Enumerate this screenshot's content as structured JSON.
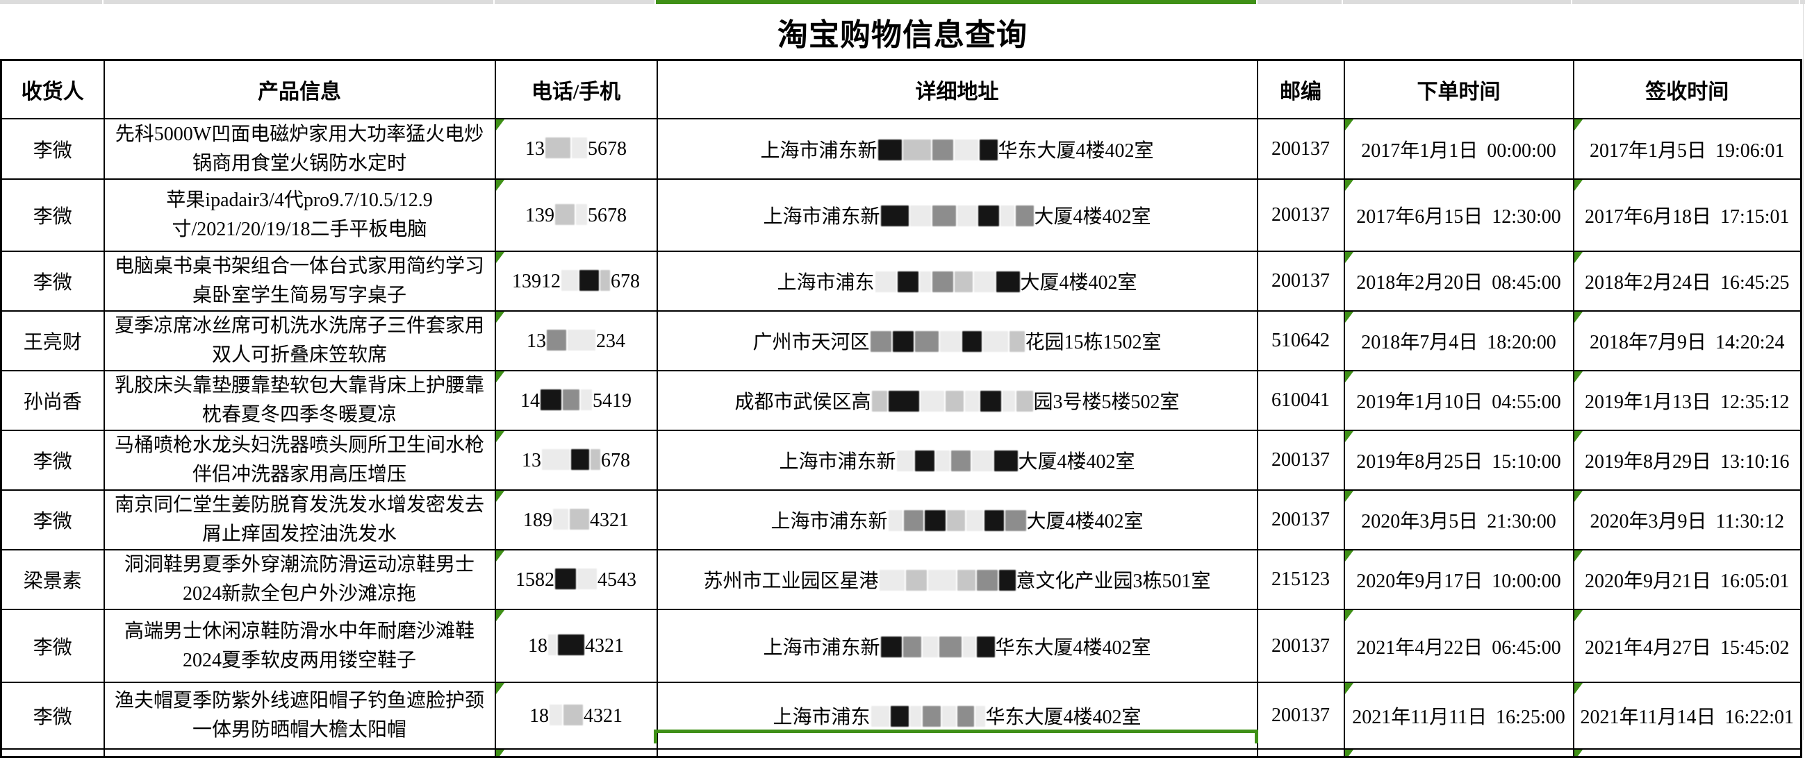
{
  "app": {
    "title": "淘宝购物信息查询"
  },
  "spreadsheet": {
    "accent_green": "#3f9017",
    "selected_column": "详细地址",
    "error_indicator_columns": [
      "phone",
      "order",
      "receipt"
    ]
  },
  "table": {
    "columns": [
      {
        "key": "recipient",
        "label": "收货人"
      },
      {
        "key": "product",
        "label": "产品信息"
      },
      {
        "key": "phone",
        "label": "电话/手机"
      },
      {
        "key": "address",
        "label": "详细地址"
      },
      {
        "key": "postal",
        "label": "邮编"
      },
      {
        "key": "order",
        "label": "下单时间"
      },
      {
        "key": "receipt",
        "label": "签收时间"
      }
    ],
    "rows": [
      {
        "recipient": "李微",
        "product": "先科5000W凹面电磁炉家用大功率猛火电炒锅商用食堂火锅防水定时",
        "phone": [
          {
            "t": "13"
          },
          {
            "r": "l",
            "w": 36
          },
          {
            "r": "xl",
            "w": 22
          },
          {
            "t": "5678"
          }
        ],
        "address": [
          {
            "t": "上海市浦东新"
          },
          {
            "r": "d",
            "w": 34
          },
          {
            "r": "l",
            "w": 40
          },
          {
            "r": "m",
            "w": 30
          },
          {
            "r": "xl",
            "w": 34
          },
          {
            "r": "d",
            "w": 26
          },
          {
            "t": "华东大厦4楼402室"
          }
        ],
        "postal": "200137",
        "order": "2017年1月1日 00:00:00",
        "receipt": "2017年1月5日 19:06:01"
      },
      {
        "recipient": "李微",
        "product": "苹果ipadair3/4代pro9.7/10.5/12.9寸/2021/20/19/18二手平板电脑",
        "phone": [
          {
            "t": "139"
          },
          {
            "r": "l",
            "w": 28
          },
          {
            "r": "xl",
            "w": 16
          },
          {
            "t": "5678"
          }
        ],
        "address": [
          {
            "t": "上海市浦东新"
          },
          {
            "r": "d",
            "w": 40
          },
          {
            "r": "xl",
            "w": 30
          },
          {
            "r": "m",
            "w": 34
          },
          {
            "r": "xl",
            "w": 28
          },
          {
            "r": "d",
            "w": 30
          },
          {
            "r": "xl",
            "w": 20
          },
          {
            "r": "m",
            "w": 26
          },
          {
            "t": "大厦4楼402室"
          }
        ],
        "postal": "200137",
        "order": "2017年6月15日 12:30:00",
        "receipt": "2017年6月18日 17:15:01"
      },
      {
        "recipient": "李微",
        "product": "电脑桌书桌书架组合一体台式家用简约学习桌卧室学生简易写字桌子",
        "phone": [
          {
            "t": "13912"
          },
          {
            "r": "xl",
            "w": 24
          },
          {
            "r": "d",
            "w": 28
          },
          {
            "r": "l",
            "w": 14
          },
          {
            "t": "678"
          }
        ],
        "address": [
          {
            "t": "上海市浦东"
          },
          {
            "r": "xl",
            "w": 30
          },
          {
            "r": "d",
            "w": 30
          },
          {
            "r": "xl",
            "w": 16
          },
          {
            "r": "m",
            "w": 30
          },
          {
            "r": "l",
            "w": 26
          },
          {
            "r": "xl",
            "w": 30
          },
          {
            "r": "d",
            "w": 34
          },
          {
            "t": "大厦4楼402室"
          }
        ],
        "postal": "200137",
        "order": "2018年2月20日 08:45:00",
        "receipt": "2018年2月24日 16:45:25"
      },
      {
        "recipient": "王亮财",
        "product": "夏季凉席冰丝席可机洗水洗席子三件套家用双人可折叠床笠软席",
        "phone": [
          {
            "t": "13"
          },
          {
            "r": "m",
            "w": 28
          },
          {
            "r": "xl",
            "w": 40
          },
          {
            "t": "234"
          }
        ],
        "address": [
          {
            "t": "广州市天河区"
          },
          {
            "r": "m",
            "w": 30
          },
          {
            "r": "d",
            "w": 30
          },
          {
            "r": "m",
            "w": 34
          },
          {
            "r": "xl",
            "w": 30
          },
          {
            "r": "d",
            "w": 28
          },
          {
            "r": "xl",
            "w": 36
          },
          {
            "r": "l",
            "w": 22
          },
          {
            "t": "花园15栋1502室"
          }
        ],
        "postal": "510642",
        "order": "2018年7月4日 18:20:00",
        "receipt": "2018年7月9日 14:20:24"
      },
      {
        "recipient": "孙尚香",
        "product": "乳胶床头靠垫腰靠垫软包大靠背床上护腰靠枕春夏冬四季冬暖夏凉",
        "phone": [
          {
            "t": "14"
          },
          {
            "r": "d",
            "w": 30
          },
          {
            "r": "m",
            "w": 24
          },
          {
            "r": "xl",
            "w": 16
          },
          {
            "t": "5419"
          }
        ],
        "address": [
          {
            "t": "成都市武侯区高"
          },
          {
            "r": "l",
            "w": 22
          },
          {
            "r": "d",
            "w": 44
          },
          {
            "r": "xl",
            "w": 34
          },
          {
            "r": "l",
            "w": 26
          },
          {
            "r": "xl",
            "w": 20
          },
          {
            "r": "d",
            "w": 30
          },
          {
            "r": "xl",
            "w": 18
          },
          {
            "r": "l",
            "w": 24
          },
          {
            "t": "园3号楼5楼502室"
          }
        ],
        "postal": "610041",
        "order": "2019年1月10日 04:55:00",
        "receipt": "2019年1月13日 12:35:12"
      },
      {
        "recipient": "李微",
        "product": "马桶喷枪水龙头妇洗器喷头厕所卫生间水枪伴侣冲洗器家用高压增压",
        "phone": [
          {
            "t": "13"
          },
          {
            "r": "xl",
            "w": 40
          },
          {
            "r": "d",
            "w": 26
          },
          {
            "r": "l",
            "w": 14
          },
          {
            "t": "678"
          }
        ],
        "address": [
          {
            "t": "上海市浦东新"
          },
          {
            "r": "xl",
            "w": 24
          },
          {
            "r": "d",
            "w": 28
          },
          {
            "r": "xl",
            "w": 20
          },
          {
            "r": "m",
            "w": 28
          },
          {
            "r": "xl",
            "w": 30
          },
          {
            "r": "d",
            "w": 34
          },
          {
            "t": "大厦4楼402室"
          }
        ],
        "postal": "200137",
        "order": "2019年8月25日 15:10:00",
        "receipt": "2019年8月29日 13:10:16"
      },
      {
        "recipient": "李微",
        "product": "南京同仁堂生姜防脱育发洗发水增发密发去屑止痒固发控油洗发水",
        "phone": [
          {
            "t": "189"
          },
          {
            "r": "xl",
            "w": 22
          },
          {
            "r": "l",
            "w": 28
          },
          {
            "t": "4321"
          }
        ],
        "address": [
          {
            "t": "上海市浦东新"
          },
          {
            "r": "xl",
            "w": 20
          },
          {
            "r": "m",
            "w": 28
          },
          {
            "r": "d",
            "w": 30
          },
          {
            "r": "l",
            "w": 26
          },
          {
            "r": "xl",
            "w": 24
          },
          {
            "r": "d",
            "w": 28
          },
          {
            "r": "m",
            "w": 30
          },
          {
            "t": "大厦4楼402室"
          }
        ],
        "postal": "200137",
        "order": "2020年3月5日 21:30:00",
        "receipt": "2020年3月9日 11:30:12"
      },
      {
        "recipient": "梁景素",
        "product": "洞洞鞋男夏季外穿潮流防滑运动凉鞋男士2024新款全包户外沙滩凉拖",
        "phone": [
          {
            "t": "1582"
          },
          {
            "r": "d",
            "w": 30
          },
          {
            "r": "xl",
            "w": 28
          },
          {
            "t": "4543"
          }
        ],
        "address": [
          {
            "t": "苏州市工业园区星港"
          },
          {
            "r": "xl",
            "w": 36
          },
          {
            "r": "l",
            "w": 30
          },
          {
            "r": "xl",
            "w": 40
          },
          {
            "r": "l",
            "w": 26
          },
          {
            "r": "m",
            "w": 30
          },
          {
            "r": "d",
            "w": 24
          },
          {
            "t": "意文化产业园3栋501室"
          }
        ],
        "postal": "215123",
        "order": "2020年9月17日 10:00:00",
        "receipt": "2020年9月21日 16:05:01"
      },
      {
        "recipient": "李微",
        "product": "高端男士休闲凉鞋防滑水中年耐磨沙滩鞋2024夏季软皮两用镂空鞋子",
        "phone": [
          {
            "t": "18"
          },
          {
            "r": "xl",
            "w": 12
          },
          {
            "r": "d",
            "w": 38
          },
          {
            "t": "4321"
          }
        ],
        "address": [
          {
            "t": "上海市浦东新"
          },
          {
            "r": "d",
            "w": 30
          },
          {
            "r": "m",
            "w": 26
          },
          {
            "r": "xl",
            "w": 22
          },
          {
            "r": "m",
            "w": 32
          },
          {
            "r": "xl",
            "w": 18
          },
          {
            "r": "d",
            "w": 26
          },
          {
            "t": "华东大厦4楼402室"
          }
        ],
        "postal": "200137",
        "order": "2021年4月22日 06:45:00",
        "receipt": "2021年4月27日 15:45:02"
      },
      {
        "recipient": "李微",
        "product": "渔夫帽夏季防紫外线遮阳帽子钓鱼遮脸护颈一体男防晒帽大檐太阳帽",
        "phone": [
          {
            "t": "18"
          },
          {
            "r": "xl",
            "w": 18
          },
          {
            "r": "l",
            "w": 28
          },
          {
            "t": "4321"
          }
        ],
        "address": [
          {
            "t": "上海市浦东"
          },
          {
            "r": "xl",
            "w": 26
          },
          {
            "r": "d",
            "w": 26
          },
          {
            "r": "xl",
            "w": 16
          },
          {
            "r": "m",
            "w": 26
          },
          {
            "r": "xl",
            "w": 20
          },
          {
            "r": "m",
            "w": 24
          },
          {
            "r": "xl",
            "w": 14
          },
          {
            "t": "华东大厦4楼402室"
          }
        ],
        "postal": "200137",
        "order": "2021年11月11日 16:25:00",
        "receipt": "2021年11月14日 16:22:01"
      }
    ],
    "partial_row": {
      "selected_cell_column": "详细地址"
    }
  }
}
